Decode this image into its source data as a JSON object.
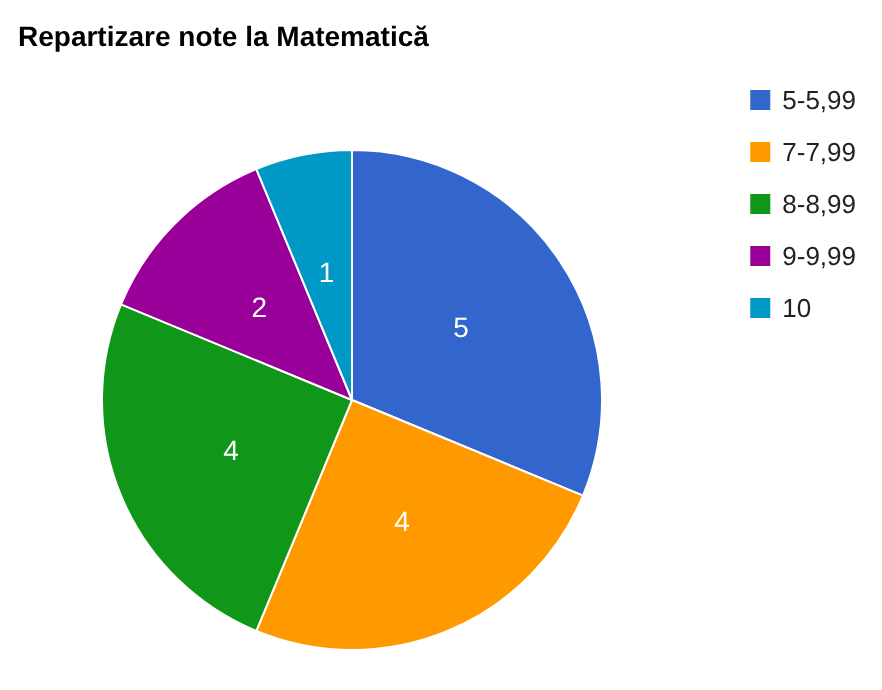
{
  "chart_data": {
    "type": "pie",
    "title": "Repartizare note la Matematică",
    "categories": [
      "5-5,99",
      "7-7,99",
      "8-8,99",
      "9-9,99",
      "10"
    ],
    "values": [
      5,
      4,
      4,
      2,
      1
    ],
    "colors": [
      "#3366cc",
      "#ff9900",
      "#109618",
      "#990099",
      "#0099c6"
    ],
    "data_labels": true,
    "legend": "right"
  }
}
